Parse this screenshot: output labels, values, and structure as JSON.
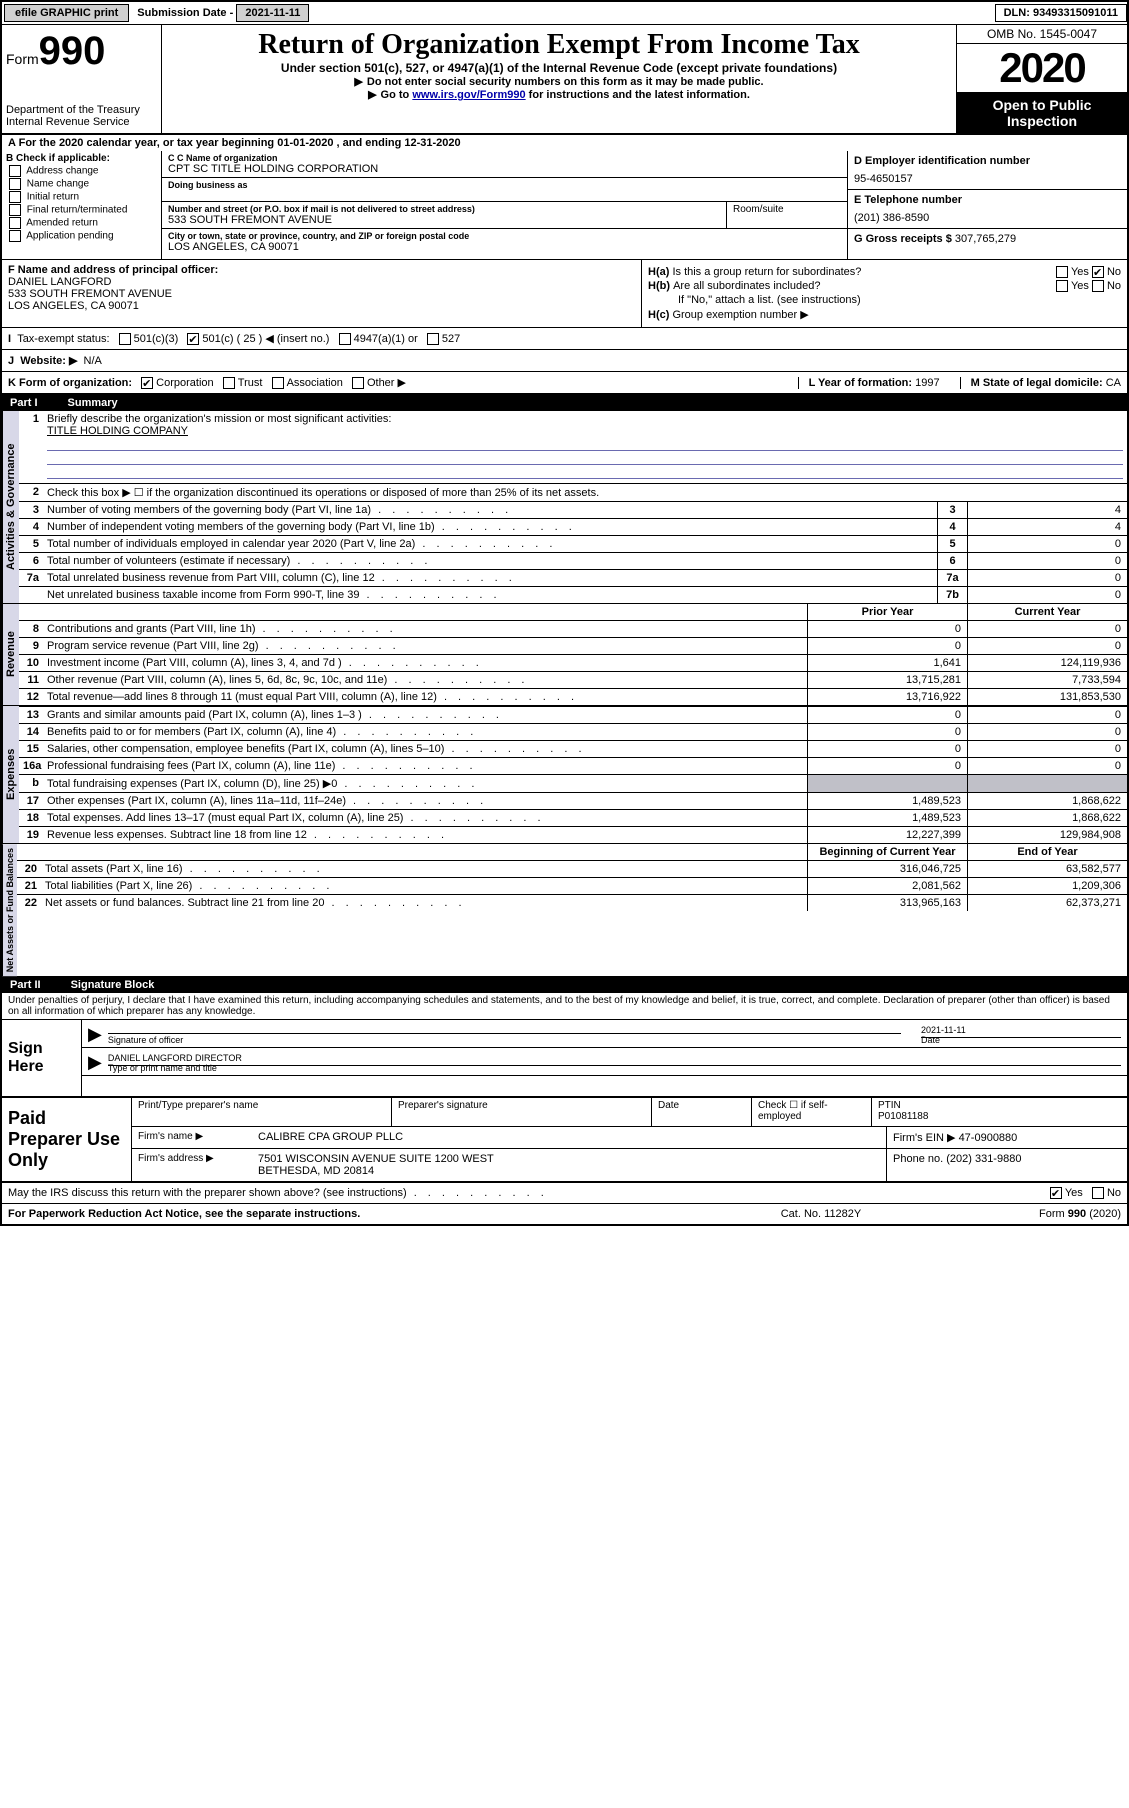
{
  "topbar": {
    "efile": "efile GRAPHIC print",
    "submission_label": "Submission Date",
    "submission_date": "2021-11-11",
    "dln_label": "DLN:",
    "dln": "93493315091011"
  },
  "header": {
    "form_label": "Form",
    "form_number": "990",
    "dept": "Department of the Treasury Internal Revenue Service",
    "title": "Return of Organization Exempt From Income Tax",
    "subtitle": "Under section 501(c), 527, or 4947(a)(1) of the Internal Revenue Code (except private foundations)",
    "instr1": "Do not enter social security numbers on this form as it may be made public.",
    "instr2_pre": "Go to ",
    "instr2_link": "www.irs.gov/Form990",
    "instr2_post": " for instructions and the latest information.",
    "omb": "OMB No. 1545-0047",
    "year": "2020",
    "open": "Open to Public Inspection"
  },
  "lineA": "For the 2020 calendar year, or tax year beginning 01-01-2020    , and ending 12-31-2020",
  "sectB": {
    "header": "B Check if applicable:",
    "opts": [
      "Address change",
      "Name change",
      "Initial return",
      "Final return/terminated",
      "Amended return",
      "Application pending"
    ],
    "c_label": "C Name of organization",
    "c_name": "CPT SC TITLE HOLDING CORPORATION",
    "dba_label": "Doing business as",
    "addr_label": "Number and street (or P.O. box if mail is not delivered to street address)",
    "addr_room": "Room/suite",
    "addr": "533 SOUTH FREMONT AVENUE",
    "city_label": "City or town, state or province, country, and ZIP or foreign postal code",
    "city": "LOS ANGELES, CA  90071",
    "d_label": "D Employer identification number",
    "d_ein": "95-4650157",
    "e_label": "E Telephone number",
    "e_phone": "(201) 386-8590",
    "g_label": "G Gross receipts $",
    "g_val": "307,765,279"
  },
  "sectF": {
    "label": "F  Name and address of principal officer:",
    "name": "DANIEL LANGFORD",
    "addr": "533 SOUTH FREMONT AVENUE",
    "city": "LOS ANGELES, CA  90071"
  },
  "sectH": {
    "a_label": "Is this a group return for subordinates?",
    "a_yes": "Yes",
    "a_no": "No",
    "b_label": "Are all subordinates included?",
    "b_yes": "Yes",
    "b_no": "No",
    "b_note": "If \"No,\" attach a list. (see instructions)",
    "c_label": "Group exemption number ▶"
  },
  "lineI": {
    "label": "Tax-exempt status:",
    "opt1": "501(c)(3)",
    "opt2": "501(c) ( 25 ) ◀ (insert no.)",
    "opt3": "4947(a)(1) or",
    "opt4": "527"
  },
  "lineJ": {
    "label": "Website: ▶",
    "val": "N/A"
  },
  "lineK": {
    "label": "K Form of organization:",
    "opts": [
      "Corporation",
      "Trust",
      "Association",
      "Other ▶"
    ],
    "l_label": "L Year of formation:",
    "l_val": "1997",
    "m_label": "M State of legal domicile:",
    "m_val": "CA"
  },
  "part1": {
    "title": "Part I",
    "subtitle": "Summary",
    "q1": "Briefly describe the organization's mission or most significant activities:",
    "q1_val": "TITLE HOLDING COMPANY",
    "q2": "Check this box ▶ ☐  if the organization discontinued its operations or disposed of more than 25% of its net assets.",
    "head_prior": "Prior Year",
    "head_current": "Current Year",
    "head_begin": "Beginning of Current Year",
    "head_end": "End of Year",
    "rows_ag": [
      {
        "n": "3",
        "t": "Number of voting members of the governing body (Part VI, line 1a)",
        "k": "3",
        "v": "4"
      },
      {
        "n": "4",
        "t": "Number of independent voting members of the governing body (Part VI, line 1b)",
        "k": "4",
        "v": "4"
      },
      {
        "n": "5",
        "t": "Total number of individuals employed in calendar year 2020 (Part V, line 2a)",
        "k": "5",
        "v": "0"
      },
      {
        "n": "6",
        "t": "Total number of volunteers (estimate if necessary)",
        "k": "6",
        "v": "0"
      },
      {
        "n": "7a",
        "t": "Total unrelated business revenue from Part VIII, column (C), line 12",
        "k": "7a",
        "v": "0"
      },
      {
        "n": "",
        "t": "Net unrelated business taxable income from Form 990-T, line 39",
        "k": "7b",
        "v": "0"
      }
    ],
    "rows_rev": [
      {
        "n": "8",
        "t": "Contributions and grants (Part VIII, line 1h)",
        "a": "0",
        "b": "0"
      },
      {
        "n": "9",
        "t": "Program service revenue (Part VIII, line 2g)",
        "a": "0",
        "b": "0"
      },
      {
        "n": "10",
        "t": "Investment income (Part VIII, column (A), lines 3, 4, and 7d )",
        "a": "1,641",
        "b": "124,119,936"
      },
      {
        "n": "11",
        "t": "Other revenue (Part VIII, column (A), lines 5, 6d, 8c, 9c, 10c, and 11e)",
        "a": "13,715,281",
        "b": "7,733,594"
      },
      {
        "n": "12",
        "t": "Total revenue—add lines 8 through 11 (must equal Part VIII, column (A), line 12)",
        "a": "13,716,922",
        "b": "131,853,530"
      }
    ],
    "rows_exp": [
      {
        "n": "13",
        "t": "Grants and similar amounts paid (Part IX, column (A), lines 1–3 )",
        "a": "0",
        "b": "0"
      },
      {
        "n": "14",
        "t": "Benefits paid to or for members (Part IX, column (A), line 4)",
        "a": "0",
        "b": "0"
      },
      {
        "n": "15",
        "t": "Salaries, other compensation, employee benefits (Part IX, column (A), lines 5–10)",
        "a": "0",
        "b": "0"
      },
      {
        "n": "16a",
        "t": "Professional fundraising fees (Part IX, column (A), line 11e)",
        "a": "0",
        "b": "0"
      },
      {
        "n": "b",
        "t": "Total fundraising expenses (Part IX, column (D), line 25) ▶0",
        "a": "",
        "b": "",
        "gray": true
      },
      {
        "n": "17",
        "t": "Other expenses (Part IX, column (A), lines 11a–11d, 11f–24e)",
        "a": "1,489,523",
        "b": "1,868,622"
      },
      {
        "n": "18",
        "t": "Total expenses. Add lines 13–17 (must equal Part IX, column (A), line 25)",
        "a": "1,489,523",
        "b": "1,868,622"
      },
      {
        "n": "19",
        "t": "Revenue less expenses. Subtract line 18 from line 12",
        "a": "12,227,399",
        "b": "129,984,908"
      }
    ],
    "rows_na": [
      {
        "n": "20",
        "t": "Total assets (Part X, line 16)",
        "a": "316,046,725",
        "b": "63,582,577"
      },
      {
        "n": "21",
        "t": "Total liabilities (Part X, line 26)",
        "a": "2,081,562",
        "b": "1,209,306"
      },
      {
        "n": "22",
        "t": "Net assets or fund balances. Subtract line 21 from line 20",
        "a": "313,965,163",
        "b": "62,373,271"
      }
    ],
    "side_ag": "Activities & Governance",
    "side_rev": "Revenue",
    "side_exp": "Expenses",
    "side_na": "Net Assets or Fund Balances"
  },
  "part2": {
    "title": "Part II",
    "subtitle": "Signature Block",
    "perjury": "Under penalties of perjury, I declare that I have examined this return, including accompanying schedules and statements, and to the best of my knowledge and belief, it is true, correct, and complete. Declaration of preparer (other than officer) is based on all information of which preparer has any knowledge."
  },
  "sign": {
    "label": "Sign Here",
    "sig_label": "Signature of officer",
    "date_label": "Date",
    "date": "2021-11-11",
    "name": "DANIEL LANGFORD  DIRECTOR",
    "name_label": "Type or print name and title"
  },
  "paid": {
    "label": "Paid Preparer Use Only",
    "c1": "Print/Type preparer's name",
    "c2": "Preparer's signature",
    "c3": "Date",
    "c4_pre": "Check ☐ if self-employed",
    "c5_label": "PTIN",
    "c5_val": "P01081188",
    "firm_name_label": "Firm's name    ▶",
    "firm_name": "CALIBRE CPA GROUP PLLC",
    "firm_ein_label": "Firm's EIN ▶",
    "firm_ein": "47-0900880",
    "firm_addr_label": "Firm's address ▶",
    "firm_addr": "7501 WISCONSIN AVENUE SUITE 1200 WEST\nBETHESDA, MD  20814",
    "phone_label": "Phone no.",
    "phone": "(202) 331-9880"
  },
  "discuss": {
    "q": "May the IRS discuss this return with the preparer shown above? (see instructions)",
    "yes": "Yes",
    "no": "No"
  },
  "footer": {
    "l": "For Paperwork Reduction Act Notice, see the separate instructions.",
    "m": "Cat. No. 11282Y",
    "r": "Form 990 (2020)"
  }
}
